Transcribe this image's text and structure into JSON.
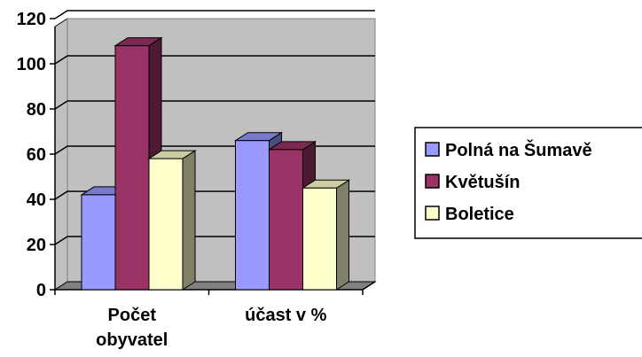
{
  "chart_data": {
    "type": "bar",
    "title": "",
    "xlabel": "",
    "ylabel": "",
    "categories": [
      [
        "Počet",
        "obyvatel"
      ],
      [
        "účast v %"
      ]
    ],
    "ylim": [
      0,
      120
    ],
    "yticks": [
      0,
      20,
      40,
      60,
      80,
      100,
      120
    ],
    "grid": true,
    "three_d": true,
    "legend_position": "right",
    "series": [
      {
        "name": "Polná na Šumavě",
        "values": [
          42,
          66
        ],
        "color": "#9999ff"
      },
      {
        "name": "Květušín",
        "values": [
          108,
          62
        ],
        "color": "#993366"
      },
      {
        "name": "Boletice",
        "values": [
          58,
          45
        ],
        "color": "#ffffcc"
      }
    ]
  }
}
